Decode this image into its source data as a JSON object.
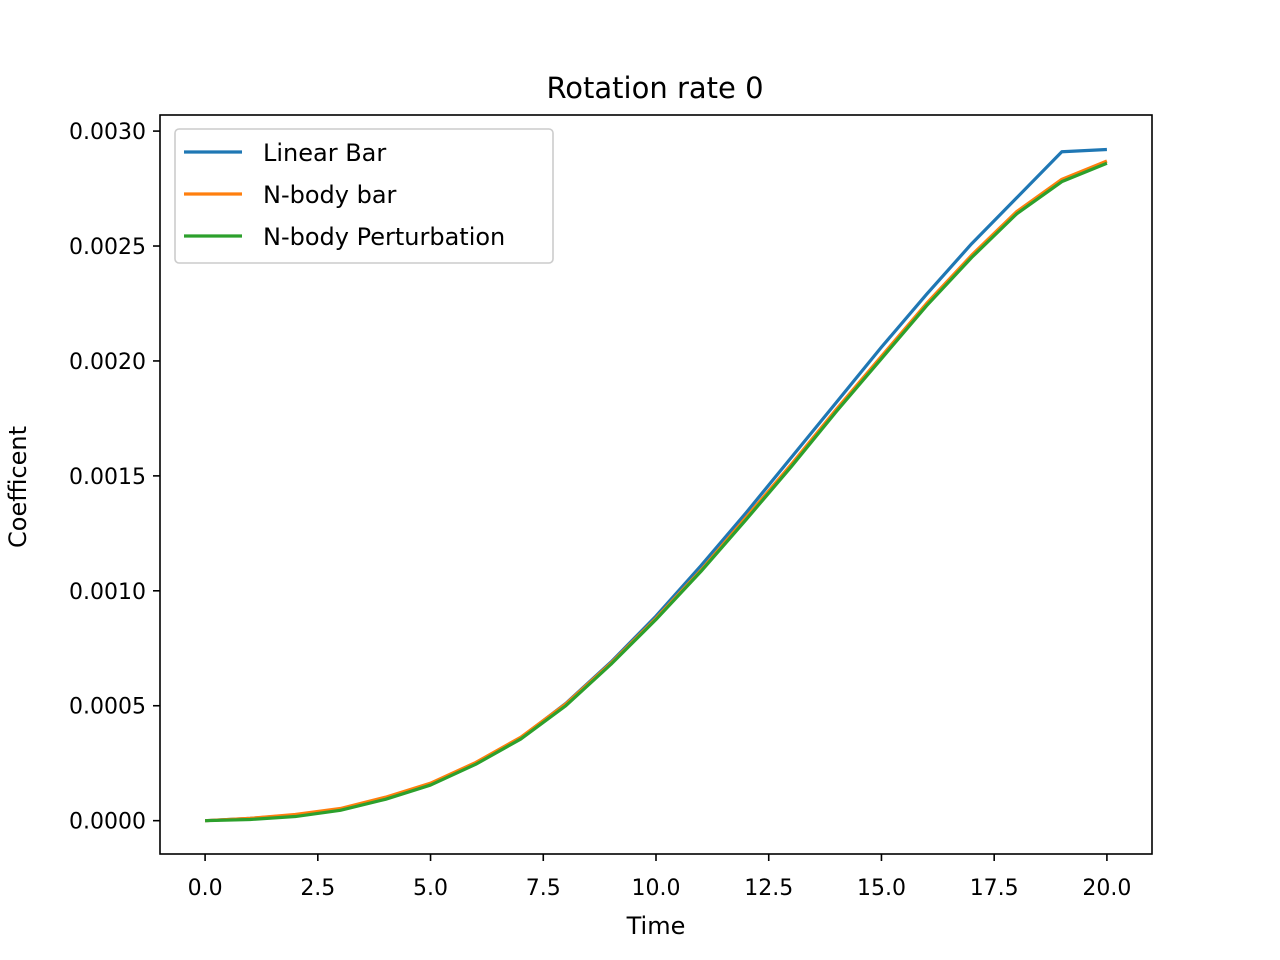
{
  "chart_data": {
    "type": "line",
    "title": "Rotation rate 0",
    "xlabel": "Time",
    "ylabel": "Coefficent",
    "xlim": [
      -1.0,
      21.0
    ],
    "ylim": [
      -0.000145,
      0.00307
    ],
    "xticks": [
      0.0,
      2.5,
      5.0,
      7.5,
      10.0,
      12.5,
      15.0,
      17.5,
      20.0
    ],
    "xtick_labels": [
      "0.0",
      "2.5",
      "5.0",
      "7.5",
      "10.0",
      "12.5",
      "15.0",
      "17.5",
      "20.0"
    ],
    "yticks": [
      0.0,
      0.0005,
      0.001,
      0.0015,
      0.002,
      0.0025,
      0.003
    ],
    "ytick_labels": [
      "0.0000",
      "0.0005",
      "0.0010",
      "0.0015",
      "0.0020",
      "0.0025",
      "0.0030"
    ],
    "grid": false,
    "legend_position": "upper-left",
    "x": [
      0,
      1,
      2,
      3,
      4,
      5,
      6,
      7,
      8,
      9,
      10,
      11,
      12,
      13,
      14,
      15,
      16,
      17,
      18,
      19,
      20
    ],
    "series": [
      {
        "name": "Linear Bar",
        "color": "#1f77b4",
        "values": [
          0.0,
          1e-05,
          2.5e-05,
          5e-05,
          0.0001,
          0.00016,
          0.00025,
          0.00036,
          0.00051,
          0.00069,
          0.00089,
          0.00111,
          0.00134,
          0.00158,
          0.00182,
          0.00206,
          0.00229,
          0.00251,
          0.00271,
          0.00291,
          0.00292
        ]
      },
      {
        "name": "N-body bar",
        "color": "#ff7f0e",
        "values": [
          0.0,
          1e-05,
          2.7e-05,
          5.3e-05,
          0.000102,
          0.000163,
          0.000253,
          0.000363,
          0.000508,
          0.000685,
          0.00088,
          0.00109,
          0.00132,
          0.00155,
          0.00179,
          0.00202,
          0.00225,
          0.00246,
          0.00265,
          0.00279,
          0.00287
        ]
      },
      {
        "name": "N-body Perturbation",
        "color": "#2ca02c",
        "values": [
          0.0,
          5e-06,
          1.8e-05,
          4.5e-05,
          9.3e-05,
          0.000155,
          0.000245,
          0.000355,
          0.0005,
          0.00068,
          0.000875,
          0.001085,
          0.00131,
          0.00154,
          0.00178,
          0.00201,
          0.00224,
          0.00245,
          0.00264,
          0.00278,
          0.00286
        ]
      }
    ]
  }
}
